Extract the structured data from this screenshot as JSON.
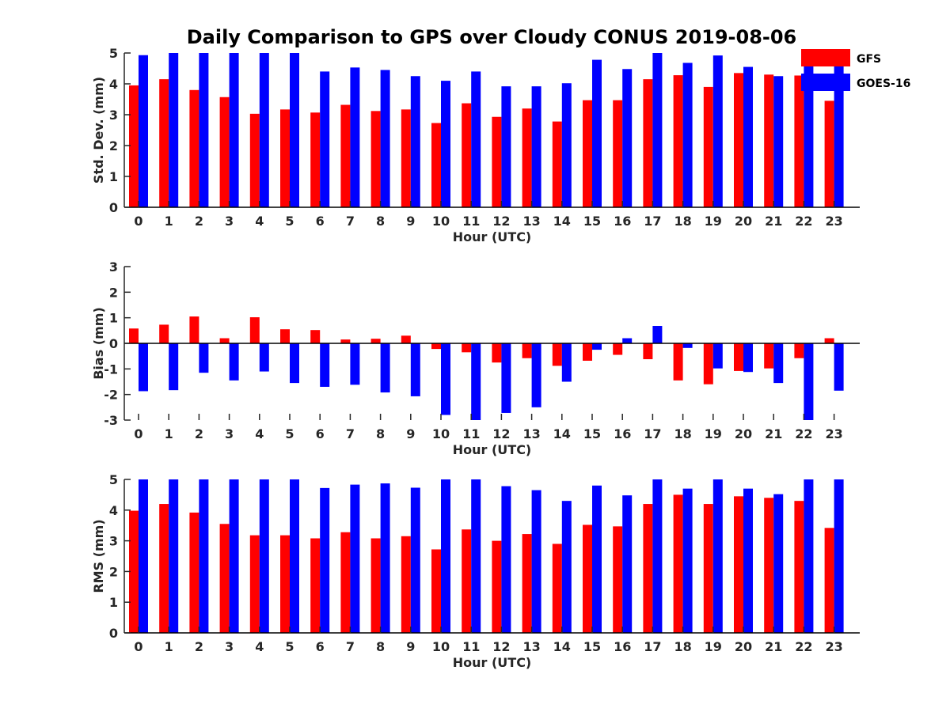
{
  "title": "Daily Comparison to GPS over Cloudy CONUS 2019-08-06",
  "legend": {
    "placement": "top-right",
    "entries": [
      {
        "name": "GFS",
        "color": "#ff0000"
      },
      {
        "name": "GOES-16",
        "color": "#0000ff"
      }
    ]
  },
  "colors": {
    "gfs": "#ff0000",
    "goes": "#0000ff",
    "axis": "#262626"
  },
  "chart_data": [
    {
      "type": "bar",
      "xlabel": "Hour (UTC)",
      "ylabel": "Std. Dev. (mm)",
      "ylim": [
        0,
        5
      ],
      "yticks": [
        0,
        1,
        2,
        3,
        4,
        5
      ],
      "categories": [
        "0",
        "1",
        "2",
        "3",
        "4",
        "5",
        "6",
        "7",
        "8",
        "9",
        "10",
        "11",
        "12",
        "13",
        "14",
        "15",
        "16",
        "17",
        "18",
        "19",
        "20",
        "21",
        "22",
        "23"
      ],
      "series": [
        {
          "name": "GFS",
          "values": [
            3.95,
            4.15,
            3.8,
            3.57,
            3.03,
            3.17,
            3.07,
            3.32,
            3.12,
            3.17,
            2.73,
            3.37,
            2.93,
            3.2,
            2.78,
            3.47,
            3.47,
            4.15,
            4.28,
            3.9,
            4.35,
            4.3,
            4.27,
            3.45
          ]
        },
        {
          "name": "GOES-16",
          "values": [
            4.93,
            5.0,
            5.0,
            5.0,
            5.0,
            5.0,
            4.4,
            4.53,
            4.45,
            4.25,
            4.1,
            4.4,
            3.92,
            3.92,
            4.02,
            4.78,
            4.48,
            5.0,
            4.68,
            4.92,
            4.55,
            4.25,
            4.57,
            4.62
          ]
        }
      ]
    },
    {
      "type": "bar",
      "xlabel": "Hour (UTC)",
      "ylabel": "Bias (mm)",
      "ylim": [
        -3,
        3
      ],
      "yticks": [
        -3,
        -2,
        -1,
        0,
        1,
        2,
        3
      ],
      "categories": [
        "0",
        "1",
        "2",
        "3",
        "4",
        "5",
        "6",
        "7",
        "8",
        "9",
        "10",
        "11",
        "12",
        "13",
        "14",
        "15",
        "16",
        "17",
        "18",
        "19",
        "20",
        "21",
        "22",
        "23"
      ],
      "series": [
        {
          "name": "GFS",
          "values": [
            0.58,
            0.73,
            1.05,
            0.2,
            1.02,
            0.55,
            0.52,
            0.15,
            0.18,
            0.3,
            -0.22,
            -0.35,
            -0.75,
            -0.58,
            -0.88,
            -0.68,
            -0.45,
            -0.62,
            -1.45,
            -1.6,
            -1.08,
            -0.98,
            -0.58,
            0.2
          ]
        },
        {
          "name": "GOES-16",
          "values": [
            -1.87,
            -1.83,
            -1.15,
            -1.45,
            -1.1,
            -1.55,
            -1.7,
            -1.62,
            -1.92,
            -2.07,
            -2.8,
            -3.0,
            -2.72,
            -2.5,
            -1.5,
            -0.25,
            0.2,
            0.68,
            -0.18,
            -0.98,
            -1.12,
            -1.55,
            -3.0,
            -1.85
          ]
        }
      ]
    },
    {
      "type": "bar",
      "xlabel": "Hour (UTC)",
      "ylabel": "RMS (mm)",
      "ylim": [
        0,
        5
      ],
      "yticks": [
        0,
        1,
        2,
        3,
        4,
        5
      ],
      "categories": [
        "0",
        "1",
        "2",
        "3",
        "4",
        "5",
        "6",
        "7",
        "8",
        "9",
        "10",
        "11",
        "12",
        "13",
        "14",
        "15",
        "16",
        "17",
        "18",
        "19",
        "20",
        "21",
        "22",
        "23"
      ],
      "series": [
        {
          "name": "GFS",
          "values": [
            3.98,
            4.2,
            3.92,
            3.55,
            3.18,
            3.18,
            3.08,
            3.28,
            3.08,
            3.15,
            2.72,
            3.37,
            3.0,
            3.22,
            2.9,
            3.52,
            3.47,
            4.2,
            4.5,
            4.2,
            4.45,
            4.4,
            4.3,
            3.42
          ]
        },
        {
          "name": "GOES-16",
          "values": [
            5.0,
            5.0,
            5.0,
            5.0,
            5.0,
            5.0,
            4.72,
            4.83,
            4.87,
            4.73,
            5.0,
            5.0,
            4.78,
            4.65,
            4.3,
            4.8,
            4.48,
            5.0,
            4.7,
            5.0,
            4.7,
            4.52,
            5.0,
            5.0
          ]
        }
      ]
    }
  ]
}
